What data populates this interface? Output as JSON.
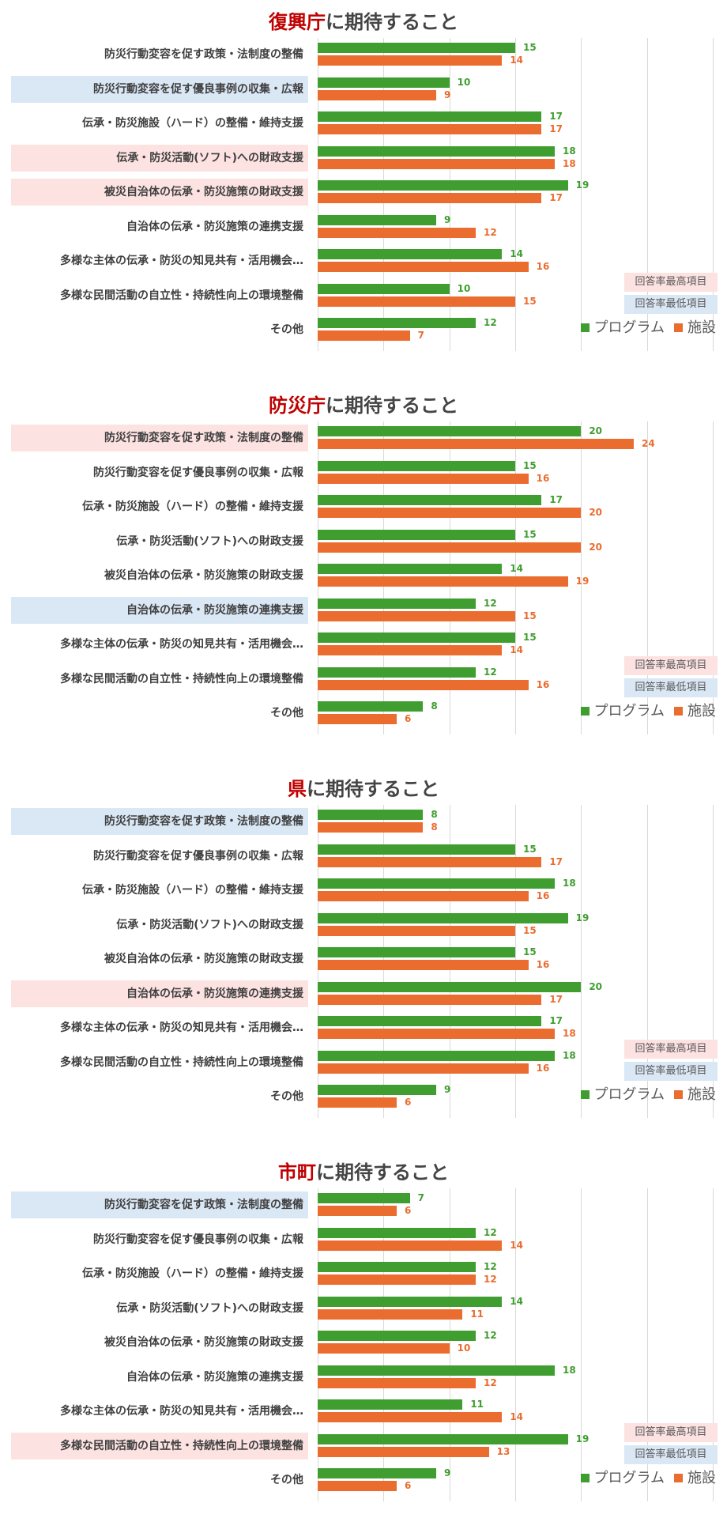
{
  "colors": {
    "program": "#3f9e2f",
    "facility": "#ea6c2f",
    "title_accent": "#c00000",
    "highest_bg": "#fde2e2",
    "lowest_bg": "#dae7f4"
  },
  "legend": {
    "program": "プログラム",
    "facility": "施設",
    "highest": "回答率最高項目",
    "lowest": "回答率最低項目"
  },
  "chart_data": [
    {
      "type": "bar",
      "orientation": "horizontal",
      "title_accent": "復興庁",
      "title_rest": "に期待すること",
      "categories": [
        "防災行動変容を促す政策・法制度の整備",
        "防災行動変容を促す優良事例の収集・広報",
        "伝承・防災施設（ハード）の整備・維持支援",
        "伝承・防災活動(ソフト)への財政支援",
        "被災自治体の伝承・防災施策の財政支援",
        "自治体の伝承・防災施策の連携支援",
        "多様な主体の伝承・防災の知見共有・活用機会…",
        "多様な民間活動の自立性・持続性向上の環境整備",
        "その他"
      ],
      "series": [
        {
          "name": "プログラム",
          "values": [
            15,
            10,
            17,
            18,
            19,
            9,
            14,
            10,
            12
          ]
        },
        {
          "name": "施設",
          "values": [
            14,
            9,
            17,
            18,
            17,
            12,
            16,
            15,
            7
          ]
        }
      ],
      "highlight": [
        "",
        "lowest",
        "",
        "highest",
        "highest",
        "",
        "",
        "",
        ""
      ],
      "xlim": [
        0,
        30
      ],
      "grid_step": 5
    },
    {
      "type": "bar",
      "orientation": "horizontal",
      "title_accent": "防災庁",
      "title_rest": "に期待すること",
      "categories": [
        "防災行動変容を促す政策・法制度の整備",
        "防災行動変容を促す優良事例の収集・広報",
        "伝承・防災施設（ハード）の整備・維持支援",
        "伝承・防災活動(ソフト)への財政支援",
        "被災自治体の伝承・防災施策の財政支援",
        "自治体の伝承・防災施策の連携支援",
        "多様な主体の伝承・防災の知見共有・活用機会…",
        "多様な民間活動の自立性・持続性向上の環境整備",
        "その他"
      ],
      "series": [
        {
          "name": "プログラム",
          "values": [
            20,
            15,
            17,
            15,
            14,
            12,
            15,
            12,
            8
          ]
        },
        {
          "name": "施設",
          "values": [
            24,
            16,
            20,
            20,
            19,
            15,
            14,
            16,
            6
          ]
        }
      ],
      "highlight": [
        "highest",
        "",
        "",
        "",
        "",
        "lowest",
        "",
        "",
        ""
      ],
      "xlim": [
        0,
        30
      ],
      "grid_step": 5
    },
    {
      "type": "bar",
      "orientation": "horizontal",
      "title_accent": "県",
      "title_rest": "に期待すること",
      "categories": [
        "防災行動変容を促す政策・法制度の整備",
        "防災行動変容を促す優良事例の収集・広報",
        "伝承・防災施設（ハード）の整備・維持支援",
        "伝承・防災活動(ソフト)への財政支援",
        "被災自治体の伝承・防災施策の財政支援",
        "自治体の伝承・防災施策の連携支援",
        "多様な主体の伝承・防災の知見共有・活用機会…",
        "多様な民間活動の自立性・持続性向上の環境整備",
        "その他"
      ],
      "series": [
        {
          "name": "プログラム",
          "values": [
            8,
            15,
            18,
            19,
            15,
            20,
            17,
            18,
            9
          ]
        },
        {
          "name": "施設",
          "values": [
            8,
            17,
            16,
            15,
            16,
            17,
            18,
            16,
            6
          ]
        }
      ],
      "highlight": [
        "lowest",
        "",
        "",
        "",
        "",
        "highest",
        "",
        "",
        ""
      ],
      "xlim": [
        0,
        30
      ],
      "grid_step": 5
    },
    {
      "type": "bar",
      "orientation": "horizontal",
      "title_accent": "市町",
      "title_rest": "に期待すること",
      "categories": [
        "防災行動変容を促す政策・法制度の整備",
        "防災行動変容を促す優良事例の収集・広報",
        "伝承・防災施設（ハード）の整備・維持支援",
        "伝承・防災活動(ソフト)への財政支援",
        "被災自治体の伝承・防災施策の財政支援",
        "自治体の伝承・防災施策の連携支援",
        "多様な主体の伝承・防災の知見共有・活用機会…",
        "多様な民間活動の自立性・持続性向上の環境整備",
        "その他"
      ],
      "series": [
        {
          "name": "プログラム",
          "values": [
            7,
            12,
            12,
            14,
            12,
            18,
            11,
            19,
            9
          ]
        },
        {
          "name": "施設",
          "values": [
            6,
            14,
            12,
            11,
            10,
            12,
            14,
            13,
            6
          ]
        }
      ],
      "highlight": [
        "lowest",
        "",
        "",
        "",
        "",
        "",
        "",
        "highest",
        ""
      ],
      "xlim": [
        0,
        30
      ],
      "grid_step": 5
    }
  ]
}
